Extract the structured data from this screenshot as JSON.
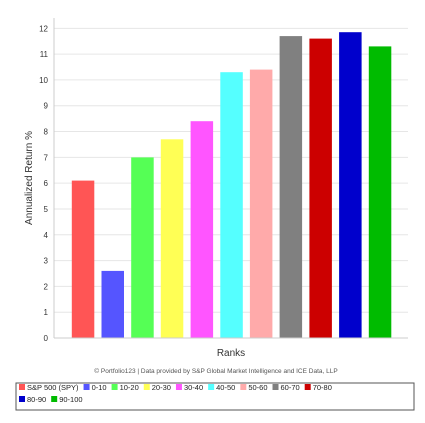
{
  "chart_data": {
    "type": "bar",
    "title": "",
    "xlabel": "Ranks",
    "ylabel": "Annualized Return %",
    "ylim": [
      0,
      12.4
    ],
    "yticks": [
      0,
      1,
      2,
      3,
      4,
      5,
      6,
      7,
      8,
      9,
      10,
      11,
      12
    ],
    "grid": true,
    "legend_position": "bottom",
    "categories": [
      "S&P 500 (SPY)",
      "0-10",
      "10-20",
      "20-30",
      "30-40",
      "40-50",
      "50-60",
      "60-70",
      "70-80",
      "80-90",
      "90-100"
    ],
    "values": [
      6.1,
      2.6,
      7.0,
      7.7,
      8.4,
      10.3,
      10.4,
      11.7,
      11.6,
      11.85,
      11.3
    ],
    "colors": [
      "#ff5555",
      "#5555ff",
      "#55ff55",
      "#ffff55",
      "#ff55ff",
      "#55ffff",
      "#ffaaaa",
      "#808080",
      "#cc0000",
      "#0000cc",
      "#00bb00"
    ],
    "credit": "© Portfolio123 | Data provided by S&P Global Market Intelligence and ICE Data, LLP"
  }
}
